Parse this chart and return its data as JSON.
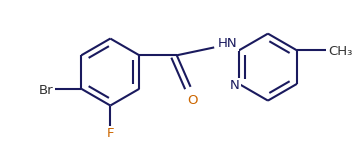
{
  "bg_color": "#ffffff",
  "bond_color": "#1a1a5e",
  "bond_color_dark": "#333333",
  "atom_N_color": "#1a1a5e",
  "atom_O_color": "#cc6600",
  "atom_F_color": "#cc6600",
  "line_width": 1.5,
  "dbo": 6.0,
  "font_size": 9.5,
  "figsize": [
    3.57,
    1.5
  ],
  "dpi": 100,
  "xlim": [
    0,
    357
  ],
  "ylim": [
    0,
    150
  ],
  "label_Br": "Br",
  "label_F": "F",
  "label_O": "O",
  "label_N": "N",
  "label_HN": "HN",
  "label_CH3": "CH₃"
}
